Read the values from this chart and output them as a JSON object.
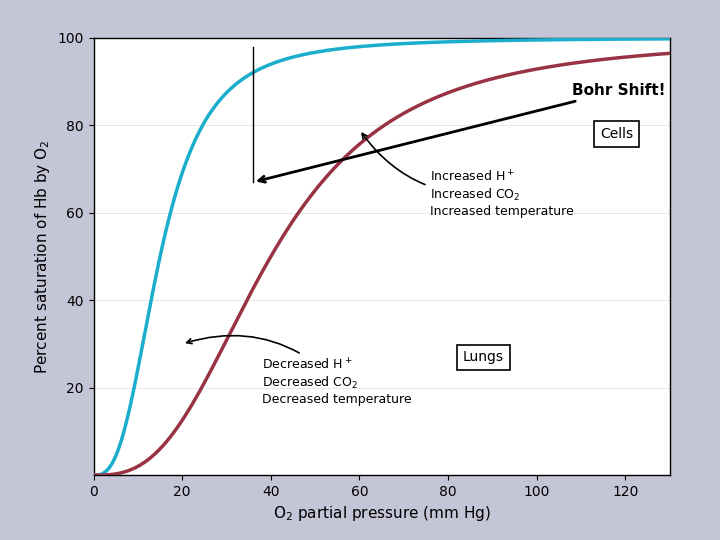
{
  "xlabel": "O$_2$ partial pressure (mm Hg)",
  "ylabel": "Percent saturation of Hb by O$_2$",
  "xlim": [
    0,
    130
  ],
  "ylim": [
    0,
    100
  ],
  "xticks": [
    0,
    20,
    40,
    60,
    80,
    100,
    120
  ],
  "yticks": [
    20,
    40,
    60,
    80,
    100
  ],
  "curve_lungs_color": "#1AADCC",
  "curve_cells_color": "#993344",
  "lungs_p50": 15,
  "cells_p50": 40,
  "lungs_n": 2.8,
  "cells_n": 2.8,
  "background_outer": "#C5C5D8",
  "background_plot": "#FFFFFF",
  "bohr_shift_label": "Bohr Shift!",
  "cells_label": "Cells",
  "lungs_label": "Lungs",
  "cells_annotation_line1": "Increased H$^+$",
  "cells_annotation_line2": "Increased CO$_2$",
  "cells_annotation_line3": "Increased temperature",
  "lungs_annotation_line1": "Decreased H$^+$",
  "lungs_annotation_line2": "Decreased CO$_2$",
  "lungs_annotation_line3": "Decreased temperature"
}
